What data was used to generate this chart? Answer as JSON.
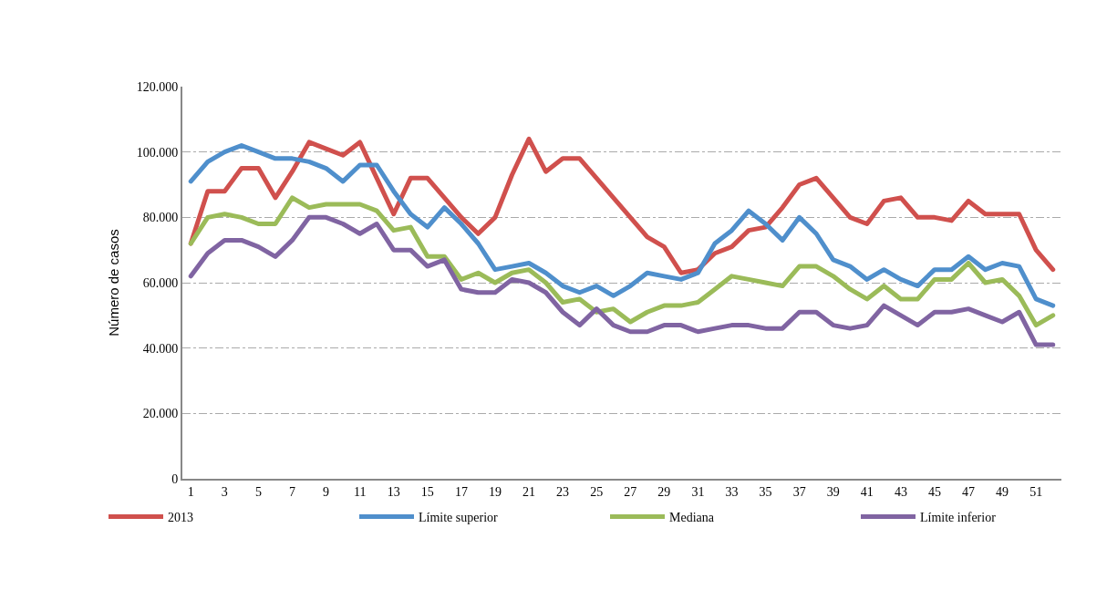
{
  "chart_data": {
    "type": "line",
    "ylabel": "Número de casos",
    "x": [
      1,
      2,
      3,
      4,
      5,
      6,
      7,
      8,
      9,
      10,
      11,
      12,
      13,
      14,
      15,
      16,
      17,
      18,
      19,
      20,
      21,
      22,
      23,
      24,
      25,
      26,
      27,
      28,
      29,
      30,
      31,
      32,
      33,
      34,
      35,
      36,
      37,
      38,
      39,
      40,
      41,
      42,
      43,
      44,
      45,
      46,
      47,
      48,
      49,
      50,
      51,
      52
    ],
    "xlim": [
      0.5,
      52.5
    ],
    "xticks": [
      1,
      3,
      5,
      7,
      9,
      11,
      13,
      15,
      17,
      19,
      21,
      23,
      25,
      27,
      29,
      31,
      33,
      35,
      37,
      39,
      41,
      43,
      45,
      47,
      49,
      51
    ],
    "ylim": [
      0,
      120000
    ],
    "yticks": [
      {
        "value": 0,
        "label": "0"
      },
      {
        "value": 20000,
        "label": "20.000"
      },
      {
        "value": 40000,
        "label": "40.000"
      },
      {
        "value": 60000,
        "label": "60.000"
      },
      {
        "value": 80000,
        "label": "80.000"
      },
      {
        "value": 100000,
        "label": "100.000"
      },
      {
        "value": 120000,
        "label": "120.000"
      }
    ],
    "grid": "y",
    "legend": "bottom",
    "marker": "none",
    "line_style": "solid",
    "series": [
      {
        "name": "2013",
        "color": "#d0504d",
        "values": [
          72000,
          88000,
          88000,
          95000,
          95000,
          86000,
          94000,
          103000,
          101000,
          99000,
          103000,
          92000,
          81000,
          92000,
          92000,
          86000,
          80000,
          75000,
          80000,
          93000,
          104000,
          94000,
          98000,
          98000,
          92000,
          86000,
          80000,
          74000,
          71000,
          63000,
          64000,
          69000,
          71000,
          76000,
          77000,
          83000,
          90000,
          92000,
          86000,
          80000,
          78000,
          85000,
          86000,
          80000,
          80000,
          79000,
          85000,
          81000,
          81000,
          81000,
          70000,
          64000
        ]
      },
      {
        "name": "Límite superior",
        "color": "#4f8fcc",
        "values": [
          91000,
          97000,
          100000,
          102000,
          100000,
          98000,
          98000,
          97000,
          95000,
          91000,
          96000,
          96000,
          88000,
          81000,
          77000,
          83000,
          78000,
          72000,
          64000,
          65000,
          66000,
          63000,
          59000,
          57000,
          59000,
          56000,
          59000,
          63000,
          62000,
          61000,
          63000,
          72000,
          76000,
          82000,
          78000,
          73000,
          80000,
          75000,
          67000,
          65000,
          61000,
          64000,
          61000,
          59000,
          64000,
          64000,
          68000,
          64000,
          66000,
          65000,
          55000,
          53000
        ]
      },
      {
        "name": "Mediana",
        "color": "#9bbb59",
        "values": [
          72000,
          80000,
          81000,
          80000,
          78000,
          78000,
          86000,
          83000,
          84000,
          84000,
          84000,
          82000,
          76000,
          77000,
          68000,
          68000,
          61000,
          63000,
          60000,
          63000,
          64000,
          60000,
          54000,
          55000,
          51000,
          52000,
          48000,
          51000,
          53000,
          53000,
          54000,
          58000,
          62000,
          61000,
          60000,
          59000,
          65000,
          65000,
          62000,
          58000,
          55000,
          59000,
          55000,
          55000,
          61000,
          61000,
          66000,
          60000,
          61000,
          56000,
          47000,
          50000
        ]
      },
      {
        "name": "Límite inferior",
        "color": "#8064a2",
        "values": [
          62000,
          69000,
          73000,
          73000,
          71000,
          68000,
          73000,
          80000,
          80000,
          78000,
          75000,
          78000,
          70000,
          70000,
          65000,
          67000,
          58000,
          57000,
          57000,
          61000,
          60000,
          57000,
          51000,
          47000,
          52000,
          47000,
          45000,
          45000,
          47000,
          47000,
          45000,
          46000,
          47000,
          47000,
          46000,
          46000,
          51000,
          51000,
          47000,
          46000,
          47000,
          53000,
          50000,
          47000,
          51000,
          51000,
          52000,
          50000,
          48000,
          51000,
          41000,
          41000
        ]
      }
    ]
  }
}
